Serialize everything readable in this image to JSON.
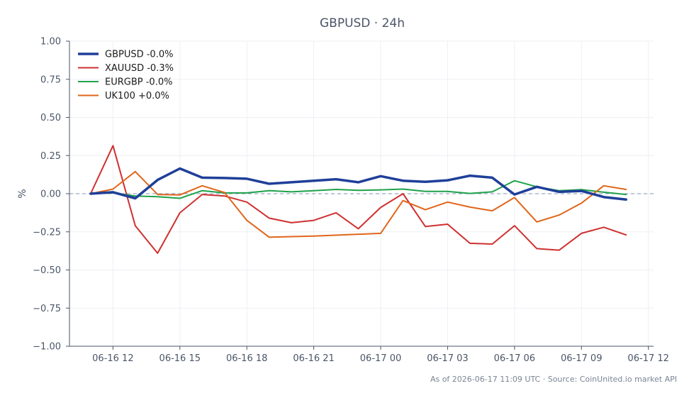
{
  "chart_data": {
    "type": "line",
    "title": "GBPUSD · 24h",
    "ylabel": "%",
    "xlabel": "",
    "ylim": [
      -1.0,
      1.0
    ],
    "xlim": [
      "2026-06-16 10:03",
      "2026-06-17 12:14"
    ],
    "grid": true,
    "legend_position": "top-left",
    "zero_line": true,
    "yticks": [
      1.0,
      0.75,
      0.5,
      0.25,
      0.0,
      -0.25,
      -0.5,
      -0.75,
      -1.0
    ],
    "ytick_labels": [
      "1.00",
      "0.75",
      "0.50",
      "0.25",
      "0.00",
      "−0.25",
      "−0.50",
      "−0.75",
      "−1.00"
    ],
    "xticks": [
      "2026-06-16 12:00",
      "2026-06-16 15:00",
      "2026-06-16 18:00",
      "2026-06-16 21:00",
      "2026-06-17 00:00",
      "2026-06-17 03:00",
      "2026-06-17 06:00",
      "2026-06-17 09:00",
      "2026-06-17 12:00"
    ],
    "xtick_labels": [
      "06-16 12",
      "06-16 15",
      "06-16 18",
      "06-16 21",
      "06-17 00",
      "06-17 03",
      "06-17 06",
      "06-17 09",
      "06-17 12"
    ],
    "x": [
      "2026-06-16 11:00",
      "2026-06-16 12:00",
      "2026-06-16 13:00",
      "2026-06-16 14:00",
      "2026-06-16 15:00",
      "2026-06-16 16:00",
      "2026-06-16 17:00",
      "2026-06-16 18:00",
      "2026-06-16 19:00",
      "2026-06-16 20:00",
      "2026-06-16 21:00",
      "2026-06-16 22:00",
      "2026-06-16 23:00",
      "2026-06-17 00:00",
      "2026-06-17 01:00",
      "2026-06-17 02:00",
      "2026-06-17 03:00",
      "2026-06-17 04:00",
      "2026-06-17 05:00",
      "2026-06-17 06:00",
      "2026-06-17 07:00",
      "2026-06-17 08:00",
      "2026-06-17 09:00",
      "2026-06-17 10:00",
      "2026-06-17 11:00"
    ],
    "series": [
      {
        "name": "GBPUSD -0.0%",
        "color": "#1f3f99",
        "width": 3.5,
        "values": [
          0.0,
          0.01,
          -0.03,
          0.09,
          0.165,
          0.105,
          0.103,
          0.098,
          0.065,
          0.075,
          0.085,
          0.095,
          0.075,
          0.115,
          0.085,
          0.078,
          0.088,
          0.118,
          0.105,
          -0.005,
          0.045,
          0.012,
          0.018,
          -0.022,
          -0.038
        ]
      },
      {
        "name": "XAUUSD -0.3%",
        "color": "#d03030",
        "width": 2,
        "values": [
          0.0,
          0.315,
          -0.21,
          -0.39,
          -0.125,
          -0.005,
          -0.015,
          -0.055,
          -0.16,
          -0.19,
          -0.175,
          -0.125,
          -0.23,
          -0.09,
          0.0,
          -0.215,
          -0.2,
          -0.325,
          -0.33,
          -0.21,
          -0.36,
          -0.37,
          -0.26,
          -0.22,
          -0.27
        ]
      },
      {
        "name": "EURGBP -0.0%",
        "color": "#1fa24a",
        "width": 2,
        "values": [
          0.0,
          0.005,
          -0.015,
          -0.02,
          -0.03,
          0.02,
          0.005,
          0.005,
          0.02,
          0.012,
          0.02,
          0.028,
          0.022,
          0.025,
          0.03,
          0.015,
          0.015,
          0.002,
          0.012,
          0.085,
          0.045,
          0.02,
          0.027,
          0.01,
          -0.005
        ]
      },
      {
        "name": "UK100 +0.0%",
        "color": "#e0661a",
        "width": 2,
        "values": [
          0.0,
          0.03,
          0.145,
          -0.005,
          -0.008,
          0.052,
          0.008,
          -0.175,
          -0.285,
          null,
          -0.278,
          null,
          null,
          -0.26,
          -0.045,
          -0.105,
          -0.055,
          -0.088,
          -0.112,
          -0.025,
          -0.185,
          -0.14,
          -0.062,
          0.052,
          0.028
        ]
      }
    ]
  },
  "footer": {
    "source_note": "As of 2026-06-17 11:09 UTC · Source: CoinUnited.io market API"
  }
}
